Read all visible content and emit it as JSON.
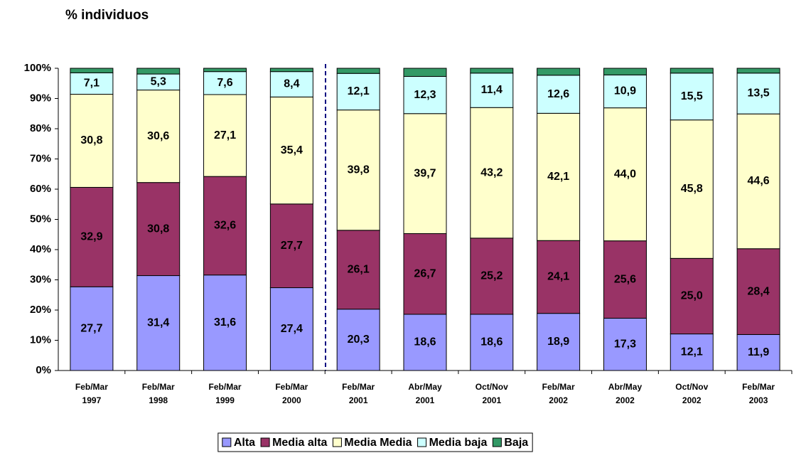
{
  "chart_data": {
    "type": "stacked-bar",
    "title": "% individuos",
    "categories": [
      [
        "Feb/Mar",
        "1997"
      ],
      [
        "Feb/Mar",
        "1998"
      ],
      [
        "Feb/Mar",
        "1999"
      ],
      [
        "Feb/Mar",
        "2000"
      ],
      [
        "Feb/Mar",
        "2001"
      ],
      [
        "Abr/May",
        "2001"
      ],
      [
        "Oct/Nov",
        "2001"
      ],
      [
        "Feb/Mar",
        "2002"
      ],
      [
        "Abr/May",
        "2002"
      ],
      [
        "Oct/Nov",
        "2002"
      ],
      [
        "Feb/Mar",
        "2003"
      ]
    ],
    "series": [
      {
        "name": "Alta",
        "color": "#9999ff",
        "values": [
          27.7,
          31.4,
          31.6,
          27.4,
          20.3,
          18.6,
          18.6,
          18.9,
          17.3,
          12.1,
          11.9
        ],
        "value_labels": [
          "27,7",
          "31,4",
          "31,6",
          "27,4",
          "20,3",
          "18,6",
          "18,6",
          "18,9",
          "17,3",
          "12,1",
          "11,9"
        ]
      },
      {
        "name": "Media alta",
        "color": "#993366",
        "values": [
          32.9,
          30.8,
          32.6,
          27.7,
          26.1,
          26.7,
          25.2,
          24.1,
          25.6,
          25.0,
          28.4
        ],
        "value_labels": [
          "32,9",
          "30,8",
          "32,6",
          "27,7",
          "26,1",
          "26,7",
          "25,2",
          "24,1",
          "25,6",
          "25,0",
          "28,4"
        ]
      },
      {
        "name": "Media Media",
        "color": "#ffffcc",
        "values": [
          30.8,
          30.6,
          27.1,
          35.4,
          39.8,
          39.7,
          43.2,
          42.1,
          44.0,
          45.8,
          44.6
        ],
        "value_labels": [
          "30,8",
          "30,6",
          "27,1",
          "35,4",
          "39,8",
          "39,7",
          "43,2",
          "42,1",
          "44,0",
          "45,8",
          "44,6"
        ]
      },
      {
        "name": "Media baja",
        "color": "#ccffff",
        "values": [
          7.1,
          5.3,
          7.6,
          8.4,
          12.1,
          12.3,
          11.4,
          12.6,
          10.9,
          15.5,
          13.5
        ],
        "value_labels": [
          "7,1",
          "5,3",
          "7,6",
          "8,4",
          "12,1",
          "12,3",
          "11,4",
          "12,6",
          "10,9",
          "15,5",
          "13,5"
        ]
      },
      {
        "name": "Baja",
        "color": "#339966",
        "values": [
          1.5,
          1.9,
          1.1,
          1.1,
          1.7,
          2.7,
          1.6,
          2.3,
          2.2,
          1.6,
          1.6
        ]
      }
    ],
    "ylim": [
      0,
      100
    ],
    "yticks": [
      {
        "value": 0,
        "label": "0%"
      },
      {
        "value": 10,
        "label": "10%"
      },
      {
        "value": 20,
        "label": "20%"
      },
      {
        "value": 30,
        "label": "30%"
      },
      {
        "value": 40,
        "label": "40%"
      },
      {
        "value": 50,
        "label": "50%"
      },
      {
        "value": 60,
        "label": "60%"
      },
      {
        "value": 70,
        "label": "70%"
      },
      {
        "value": 80,
        "label": "80%"
      },
      {
        "value": 90,
        "label": "90%"
      },
      {
        "value": 100,
        "label": "100%"
      }
    ],
    "legend": "bottom"
  }
}
